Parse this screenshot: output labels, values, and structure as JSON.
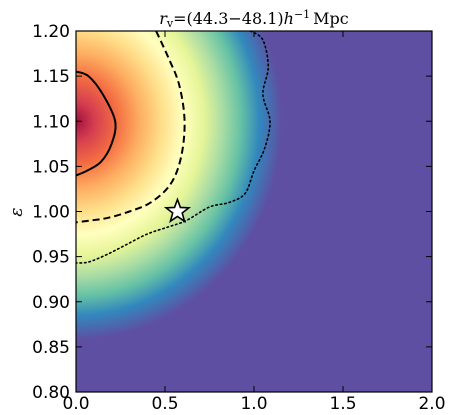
{
  "chart_data": {
    "type": "heatmap",
    "title": "r_v=(44.3−48.1)h⁻¹ Mpc",
    "title_parts": {
      "r": "r",
      "sub": "v",
      "eq": "=(44.3−48.1)",
      "h": "h",
      "sup": "−1",
      "unit": "Mpc"
    },
    "xlabel": "",
    "ylabel": "ε",
    "xlim": [
      0.0,
      2.0
    ],
    "ylim": [
      0.8,
      1.2
    ],
    "xticks": [
      0.0,
      0.5,
      1.0,
      1.5,
      2.0
    ],
    "xtick_labels": [
      "0.0",
      "0.5",
      "1.0",
      "1.5",
      "2.0"
    ],
    "yticks": [
      0.8,
      0.85,
      0.9,
      0.95,
      1.0,
      1.05,
      1.1,
      1.15,
      1.2
    ],
    "ytick_labels": [
      "0.80",
      "0.85",
      "0.90",
      "0.95",
      "1.00",
      "1.05",
      "1.10",
      "1.15",
      "1.20"
    ],
    "colormap": "Spectral_r",
    "background_color": "#5e4fa2",
    "peak": {
      "x": 0.0,
      "y": 1.1
    },
    "contours": [
      {
        "level": "inner",
        "style": "solid",
        "points": [
          [
            0.0,
            1.155
          ],
          [
            0.07,
            1.15
          ],
          [
            0.15,
            1.13
          ],
          [
            0.22,
            1.1
          ],
          [
            0.2,
            1.075
          ],
          [
            0.14,
            1.055
          ],
          [
            0.06,
            1.045
          ],
          [
            0.0,
            1.04
          ]
        ]
      },
      {
        "level": "middle",
        "style": "dashed",
        "points": [
          [
            0.45,
            1.2
          ],
          [
            0.52,
            1.17
          ],
          [
            0.58,
            1.14
          ],
          [
            0.61,
            1.1
          ],
          [
            0.59,
            1.06
          ],
          [
            0.53,
            1.03
          ],
          [
            0.42,
            1.01
          ],
          [
            0.3,
            1.0
          ],
          [
            0.18,
            0.993
          ],
          [
            0.08,
            0.99
          ],
          [
            0.0,
            0.988
          ]
        ]
      },
      {
        "level": "outer",
        "style": "dotted",
        "points": [
          [
            0.98,
            1.2
          ],
          [
            1.05,
            1.19
          ],
          [
            1.08,
            1.16
          ],
          [
            1.05,
            1.13
          ],
          [
            1.09,
            1.1
          ],
          [
            1.06,
            1.07
          ],
          [
            1.0,
            1.045
          ],
          [
            0.95,
            1.02
          ],
          [
            0.86,
            1.01
          ],
          [
            0.75,
            1.005
          ],
          [
            0.62,
            0.99
          ],
          [
            0.52,
            0.983
          ],
          [
            0.4,
            0.975
          ],
          [
            0.28,
            0.963
          ],
          [
            0.17,
            0.952
          ],
          [
            0.07,
            0.944
          ],
          [
            0.0,
            0.943
          ]
        ]
      }
    ],
    "marker": {
      "type": "star",
      "x": 0.57,
      "y": 1.0,
      "color": "#ffffff"
    }
  }
}
